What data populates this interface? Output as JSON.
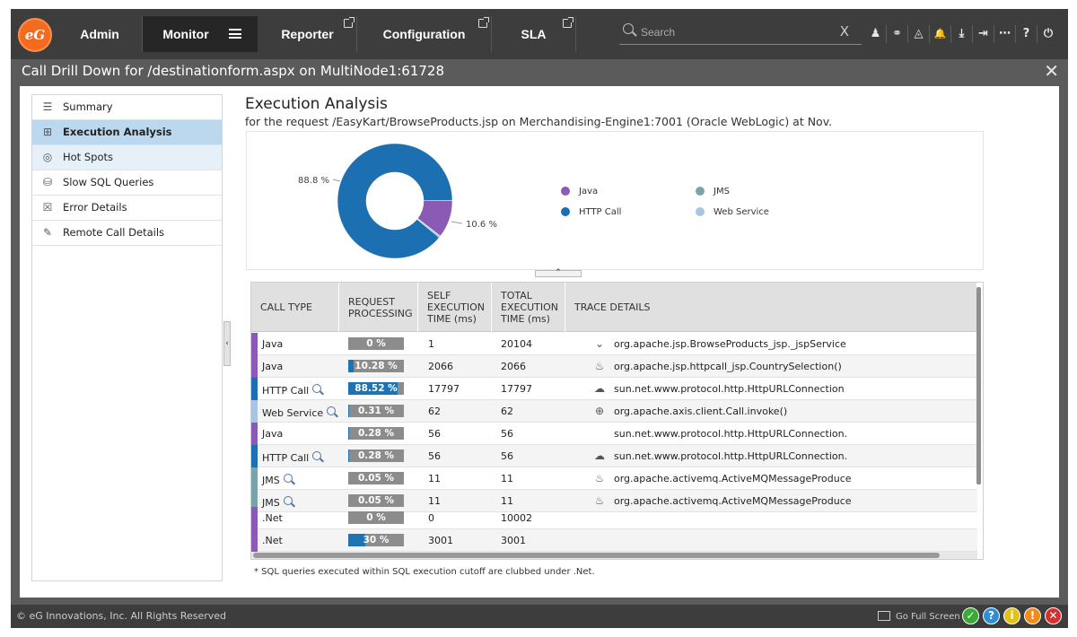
{
  "topnav": {
    "logo_text": "eG",
    "tabs": [
      {
        "label": "Admin"
      },
      {
        "label": "Monitor"
      },
      {
        "label": "Reporter"
      },
      {
        "label": "Configuration"
      },
      {
        "label": "SLA"
      }
    ],
    "search_placeholder": "Search",
    "search_clear": "X",
    "icons": [
      "user-icon",
      "link-icon",
      "alarm-icon",
      "bell-icon",
      "download-icon",
      "signout-icon",
      "more-icon",
      "help-icon",
      "power-icon"
    ],
    "icon_glyphs": [
      "♟",
      "⚭",
      "◬",
      "🔔",
      "⤓",
      "⇥",
      "⋯",
      "?",
      "⏻"
    ]
  },
  "window": {
    "title": "Call Drill Down for /destinationform.aspx on MultiNode1:61728",
    "close": "✕"
  },
  "sidebar": {
    "items": [
      {
        "label": "Summary",
        "icon": "summary-list-icon",
        "glyph": "☰"
      },
      {
        "label": "Execution Analysis",
        "icon": "execution-tree-icon",
        "glyph": "⊞"
      },
      {
        "label": "Hot Spots",
        "icon": "hotspot-target-icon",
        "glyph": "◎"
      },
      {
        "label": "Slow SQL Queries",
        "icon": "database-icon",
        "glyph": "⛁"
      },
      {
        "label": "Error Details",
        "icon": "error-list-icon",
        "glyph": "☒"
      },
      {
        "label": "Remote Call Details",
        "icon": "remote-call-icon",
        "glyph": "✎"
      }
    ],
    "collapse_glyph": "‹"
  },
  "main": {
    "title": "Execution Analysis",
    "subtitle": "for the request /EasyKart/BrowseProducts.jsp on Merchandising-Engine1:7001 (Oracle WebLogic) at Nov.",
    "toggle_glyph": "⌃",
    "footnote": "* SQL queries executed within SQL execution cutoff are clubbed under .Net."
  },
  "chart_data": {
    "type": "pie",
    "title": "",
    "slices": [
      {
        "label": "HTTP Call",
        "value": 88.8,
        "color": "#1c6fb0"
      },
      {
        "label": "Java",
        "value": 10.6,
        "color": "#8a5ab4"
      },
      {
        "label": "Web Service",
        "value": 0.3,
        "color": "#a9c4e2"
      },
      {
        "label": "JMS",
        "value": 0.3,
        "color": "#7aa3a8"
      }
    ],
    "data_labels": [
      "88.8 %",
      "10.6 %"
    ],
    "legend": [
      {
        "label": "Java",
        "color": "#8a5ab4"
      },
      {
        "label": "JMS",
        "color": "#7aa3a8"
      },
      {
        "label": "HTTP Call",
        "color": "#1c6fb0"
      },
      {
        "label": "Web Service",
        "color": "#a9c4e2"
      }
    ],
    "legend_placement": "right",
    "donut": true
  },
  "table": {
    "headers": [
      "CALL TYPE",
      "REQUEST PROCESSING",
      "SELF EXECUTION TIME (ms)",
      "TOTAL EXECUTION TIME (ms)",
      "TRACE DETAILS"
    ],
    "rows": [
      {
        "call_type": "Java",
        "color": "#8a5ab4",
        "magnifier": false,
        "pct_label": "0 %",
        "pct": 0,
        "self": "1",
        "total": "20104",
        "icon": "jsp-icon",
        "glyph": "⌄",
        "trace": "org.apache.jsp.BrowseProducts_jsp._jspService"
      },
      {
        "call_type": "Java",
        "color": "#8a5ab4",
        "magnifier": false,
        "pct_label": "10.28 %",
        "pct": 10.28,
        "self": "2066",
        "total": "2066",
        "icon": "java-cup-icon",
        "glyph": "♨",
        "trace": "org.apache.jsp.httpcall_jsp.CountrySelection()"
      },
      {
        "call_type": "HTTP Call",
        "color": "#1c6fb0",
        "magnifier": true,
        "pct_label": "88.52 %",
        "pct": 88.52,
        "self": "17797",
        "total": "17797",
        "icon": "cloud-icon",
        "glyph": "☁",
        "trace": "sun.net.www.protocol.http.HttpURLConnection"
      },
      {
        "call_type": "Web Service",
        "color": "#a9c4e2",
        "magnifier": true,
        "pct_label": "0.31 %",
        "pct": 0.31,
        "self": "62",
        "total": "62",
        "icon": "globe-icon",
        "glyph": "⊕",
        "trace": "org.apache.axis.client.Call.invoke()"
      },
      {
        "call_type": "Java",
        "color": "#8a5ab4",
        "magnifier": false,
        "pct_label": "0.28 %",
        "pct": 0.28,
        "self": "56",
        "total": "56",
        "icon": "",
        "glyph": "",
        "trace": "sun.net.www.protocol.http.HttpURLConnection."
      },
      {
        "call_type": "HTTP Call",
        "color": "#1c6fb0",
        "magnifier": true,
        "pct_label": "0.28 %",
        "pct": 0.28,
        "self": "56",
        "total": "56",
        "icon": "cloud-icon",
        "glyph": "☁",
        "trace": "sun.net.www.protocol.http.HttpURLConnection."
      },
      {
        "call_type": "JMS",
        "color": "#7aa3a8",
        "magnifier": true,
        "pct_label": "0.05 %",
        "pct": 0.05,
        "self": "11",
        "total": "11",
        "icon": "java-cup-icon",
        "glyph": "♨",
        "trace": "org.apache.activemq.ActiveMQMessageProduce"
      },
      {
        "call_type": "JMS",
        "color": "#7aa3a8",
        "magnifier": true,
        "pct_label": "0.05 %",
        "pct": 0.05,
        "self": "11",
        "total": "11",
        "icon": "java-cup-icon",
        "glyph": "♨",
        "trace": "org.apache.activemq.ActiveMQMessageProduce"
      },
      {
        "call_type": ".Net",
        "color": "#8a5ab4",
        "magnifier": false,
        "pct_label": "0 %",
        "pct": 0,
        "self": "0",
        "total": "10002",
        "icon": "",
        "glyph": "",
        "trace": ""
      },
      {
        "call_type": ".Net",
        "color": "#8a5ab4",
        "magnifier": false,
        "pct_label": "30 %",
        "pct": 30,
        "self": "3001",
        "total": "3001",
        "icon": "",
        "glyph": "",
        "trace": ""
      }
    ]
  },
  "footer": {
    "copyright": "© eG Innovations, Inc. All Rights Reserved",
    "fullscreen": "Go Full Screen",
    "status_icons": [
      {
        "name": "ok-status-icon",
        "glyph": "✓",
        "color": "#3aa935"
      },
      {
        "name": "unknown-status-icon",
        "glyph": "?",
        "color": "#2e8fd8"
      },
      {
        "name": "info-status-icon",
        "glyph": "i",
        "color": "#e2c21a"
      },
      {
        "name": "warning-status-icon",
        "glyph": "!",
        "color": "#f08c1a"
      },
      {
        "name": "critical-status-icon",
        "glyph": "✕",
        "color": "#d8302e"
      }
    ]
  }
}
